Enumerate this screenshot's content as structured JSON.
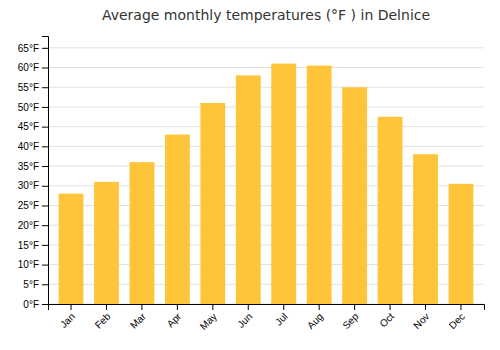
{
  "chart_data": {
    "type": "bar",
    "title": "Average monthly temperatures (°F ) in Delnice",
    "categories": [
      "Jan",
      "Feb",
      "Mar",
      "Apr",
      "May",
      "Jun",
      "Jul",
      "Aug",
      "Sep",
      "Oct",
      "Nov",
      "Dec"
    ],
    "values": [
      28,
      31,
      36,
      43,
      51,
      58,
      61,
      60.5,
      55,
      47.5,
      38,
      30.5
    ],
    "color": "#FFC53A",
    "ylim": [
      0,
      68
    ],
    "yticks": [
      {
        "value": 0,
        "label": "0°F"
      },
      {
        "value": 5,
        "label": "5°F"
      },
      {
        "value": 10,
        "label": "10°F"
      },
      {
        "value": 15,
        "label": "15°F"
      },
      {
        "value": 20,
        "label": "20°F"
      },
      {
        "value": 25,
        "label": "25°F"
      },
      {
        "value": 30,
        "label": "30°F"
      },
      {
        "value": 35,
        "label": "35°F"
      },
      {
        "value": 40,
        "label": "40°F"
      },
      {
        "value": 45,
        "label": "45°F"
      },
      {
        "value": 50,
        "label": "50°F"
      },
      {
        "value": 55,
        "label": "55°F"
      },
      {
        "value": 60,
        "label": "60°F"
      },
      {
        "value": 65,
        "label": "65°F"
      }
    ],
    "grid": true
  }
}
